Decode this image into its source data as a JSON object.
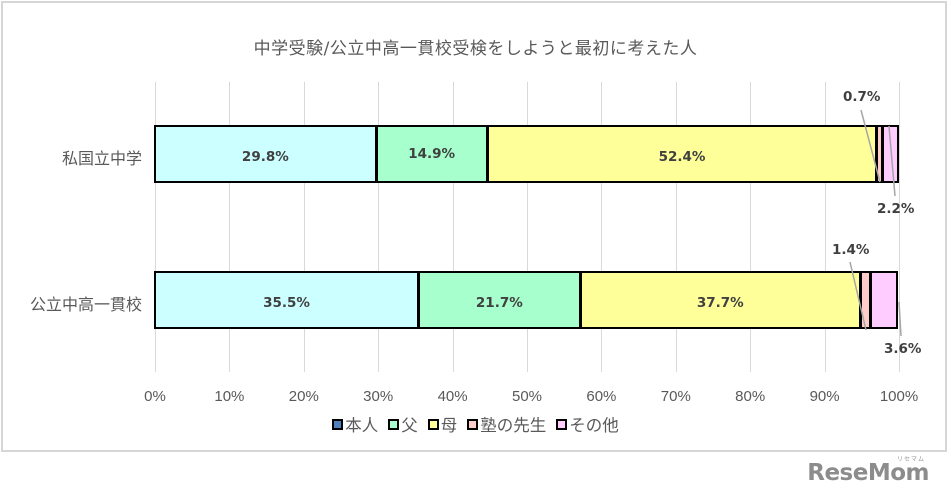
{
  "chart_data": {
    "type": "bar",
    "orientation": "horizontal",
    "stacked": "percent",
    "title": "中学受験/公立中高一貫校受検をしようと最初に考えた人",
    "categories": [
      "私国立中学",
      "公立中高一貫校"
    ],
    "series": [
      {
        "name": "本人",
        "values": [
          29.8,
          35.5
        ],
        "bar_color": "#CCFFFF",
        "legend_color": "#4F81BD"
      },
      {
        "name": "父",
        "values": [
          14.9,
          21.7
        ],
        "bar_color": "#A6FFCC",
        "legend_color": "#A6FFCC"
      },
      {
        "name": "母",
        "values": [
          52.4,
          37.7
        ],
        "bar_color": "#FFFF99",
        "legend_color": "#FFFF99"
      },
      {
        "name": "塾の先生",
        "values": [
          0.7,
          1.4
        ],
        "bar_color": "#FFCCCC",
        "legend_color": "#FFCCCC"
      },
      {
        "name": "その他",
        "values": [
          2.2,
          3.6
        ],
        "bar_color": "#FFCCFF",
        "legend_color": "#FFCCFF"
      }
    ],
    "data_labels": [
      [
        "29.8%",
        "14.9%",
        "52.4%",
        "0.7%",
        "2.2%"
      ],
      [
        "35.5%",
        "21.7%",
        "37.7%",
        "1.4%",
        "3.6%"
      ]
    ],
    "xlabel": "",
    "ylabel": "",
    "xlim": [
      0,
      100
    ],
    "x_ticks": [
      "0%",
      "10%",
      "20%",
      "30%",
      "40%",
      "50%",
      "60%",
      "70%",
      "80%",
      "90%",
      "100%"
    ],
    "grid": "vertical",
    "legend_position": "bottom"
  },
  "chart": {
    "title": "中学受験/公立中高一貫校受検をしようと最初に考えた人",
    "categories": [
      "私国立中学",
      "公立中高一貫校"
    ],
    "x_ticks": [
      "0%",
      "10%",
      "20%",
      "30%",
      "40%",
      "50%",
      "60%",
      "70%",
      "80%",
      "90%",
      "100%"
    ],
    "bars": [
      {
        "labels": [
          "29.8%",
          "14.9%",
          "52.4%",
          "0.7%",
          "2.2%"
        ]
      },
      {
        "labels": [
          "35.5%",
          "21.7%",
          "37.7%",
          "1.4%",
          "3.6%"
        ]
      }
    ],
    "legend": [
      "本人",
      "父",
      "母",
      "塾の先生",
      "その他"
    ]
  },
  "watermark": {
    "text": "ReseMom",
    "kana": "リセマム"
  }
}
